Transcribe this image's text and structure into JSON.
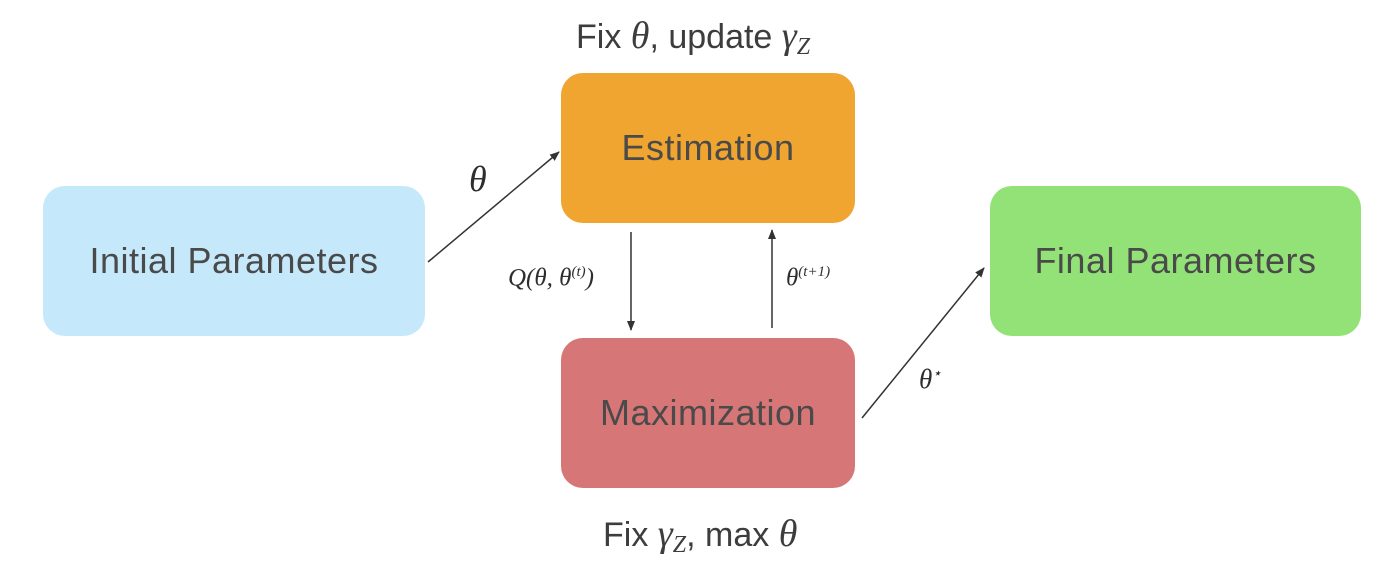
{
  "nodes": {
    "initial": {
      "label": "Initial Parameters",
      "color": "#c6e8fb"
    },
    "estimation": {
      "label": "Estimation",
      "color": "#efa52f"
    },
    "maximization": {
      "label": "Maximization",
      "color": "#d77676"
    },
    "final": {
      "label": "Final Parameters",
      "color": "#93e277"
    }
  },
  "captions": {
    "estimation_step": {
      "prefix": "Fix ",
      "var": "θ",
      "middle": ", update ",
      "gamma": "γ",
      "sub": "Z"
    },
    "maximization_step": {
      "prefix": "Fix ",
      "gamma": "γ",
      "sub": "Z",
      "middle": ", max ",
      "var": "θ"
    }
  },
  "edges": {
    "initial_to_estimation": {
      "symbol": "θ"
    },
    "estimation_to_maximization": {
      "prefix": "Q(θ, θ",
      "sup": "(t)",
      "suffix": ")"
    },
    "maximization_to_estimation": {
      "symbol": "θ",
      "sup": "(t+1)"
    },
    "maximization_to_final": {
      "symbol": "θ",
      "sup": "⋆"
    }
  },
  "colors": {
    "arrow": "#333333",
    "text": "#4a4a4a"
  }
}
